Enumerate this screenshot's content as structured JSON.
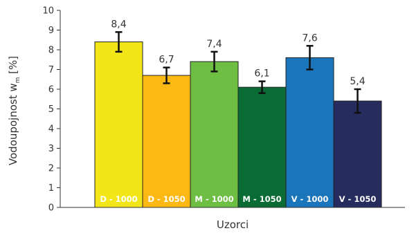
{
  "chart_data": {
    "type": "bar",
    "categories": [
      "D - 1000",
      "D - 1050",
      "M - 1000",
      "M - 1050",
      "V - 1000",
      "V - 1050"
    ],
    "values": [
      8.4,
      6.7,
      7.4,
      6.1,
      7.6,
      5.4
    ],
    "value_labels": [
      "8,4",
      "6,7",
      "7,4",
      "6,1",
      "7,6",
      "5,4"
    ],
    "error": [
      0.5,
      0.4,
      0.5,
      0.3,
      0.6,
      0.6
    ],
    "colors": [
      "#f2e619",
      "#fdb913",
      "#6ebe44",
      "#0b6b35",
      "#1b75bb",
      "#262c5e"
    ],
    "yticks": [
      "0",
      "1",
      "2",
      "3",
      "4",
      "5",
      "6",
      "7",
      "8",
      "9",
      "10"
    ],
    "ylim": [
      0,
      10
    ],
    "xlabel": "Uzorci",
    "ylabel": {
      "main": "Vodoupojnost w",
      "subscript": "m",
      "unit": " [%]"
    }
  }
}
